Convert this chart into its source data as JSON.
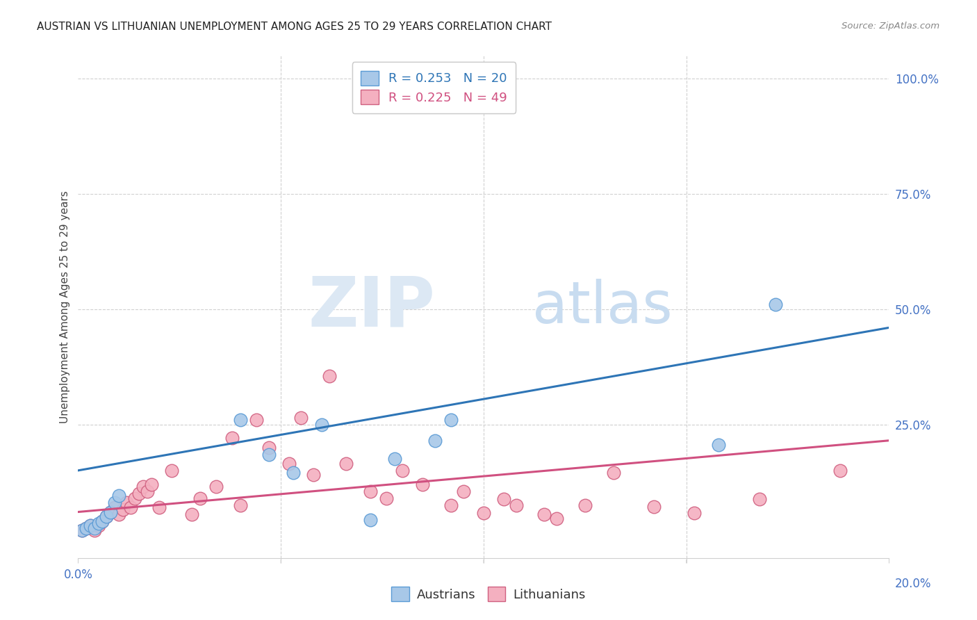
{
  "title": "AUSTRIAN VS LITHUANIAN UNEMPLOYMENT AMONG AGES 25 TO 29 YEARS CORRELATION CHART",
  "source": "Source: ZipAtlas.com",
  "ylabel": "Unemployment Among Ages 25 to 29 years",
  "right_yticks": [
    "100.0%",
    "75.0%",
    "50.0%",
    "25.0%"
  ],
  "right_ytick_vals": [
    1.0,
    0.75,
    0.5,
    0.25
  ],
  "x_min": 0.0,
  "x_max": 0.2,
  "y_min": -0.04,
  "y_max": 1.05,
  "legend": {
    "austrians": {
      "R": 0.253,
      "N": 20,
      "color": "#a8c8e8"
    },
    "lithuanians": {
      "R": 0.225,
      "N": 49,
      "color": "#f4b0c0"
    }
  },
  "austrians_x": [
    0.001,
    0.002,
    0.003,
    0.004,
    0.005,
    0.006,
    0.007,
    0.008,
    0.009,
    0.01,
    0.04,
    0.047,
    0.053,
    0.06,
    0.072,
    0.078,
    0.088,
    0.092,
    0.158,
    0.172
  ],
  "austrians_y": [
    0.02,
    0.025,
    0.03,
    0.025,
    0.035,
    0.04,
    0.05,
    0.06,
    0.08,
    0.095,
    0.26,
    0.185,
    0.145,
    0.25,
    0.042,
    0.175,
    0.215,
    0.26,
    0.205,
    0.51
  ],
  "lithuanians_x": [
    0.001,
    0.002,
    0.003,
    0.004,
    0.005,
    0.006,
    0.007,
    0.008,
    0.009,
    0.01,
    0.011,
    0.012,
    0.013,
    0.014,
    0.015,
    0.016,
    0.017,
    0.018,
    0.02,
    0.023,
    0.028,
    0.03,
    0.034,
    0.038,
    0.04,
    0.044,
    0.047,
    0.052,
    0.055,
    0.058,
    0.062,
    0.066,
    0.072,
    0.076,
    0.08,
    0.085,
    0.092,
    0.095,
    0.1,
    0.105,
    0.108,
    0.115,
    0.118,
    0.125,
    0.132,
    0.142,
    0.152,
    0.168,
    0.188
  ],
  "lithuanians_y": [
    0.02,
    0.025,
    0.03,
    0.02,
    0.03,
    0.04,
    0.05,
    0.06,
    0.07,
    0.055,
    0.065,
    0.08,
    0.07,
    0.09,
    0.1,
    0.115,
    0.105,
    0.12,
    0.07,
    0.15,
    0.055,
    0.09,
    0.115,
    0.22,
    0.075,
    0.26,
    0.2,
    0.165,
    0.265,
    0.14,
    0.355,
    0.165,
    0.105,
    0.09,
    0.15,
    0.12,
    0.075,
    0.105,
    0.058,
    0.088,
    0.075,
    0.055,
    0.045,
    0.075,
    0.145,
    0.072,
    0.058,
    0.088,
    0.15
  ],
  "austrians_line": {
    "x0": 0.0,
    "y0": 0.15,
    "x1": 0.2,
    "y1": 0.46
  },
  "lithuanians_line": {
    "x0": 0.0,
    "y0": 0.06,
    "x1": 0.2,
    "y1": 0.215
  },
  "title_fontsize": 11,
  "axis_color": "#4472c4",
  "background_color": "#ffffff",
  "grid_color": "#d0d0d0",
  "aus_line_color": "#2e75b6",
  "lit_line_color": "#d05080",
  "aus_edge_color": "#5b9bd5",
  "lit_edge_color": "#d06080"
}
